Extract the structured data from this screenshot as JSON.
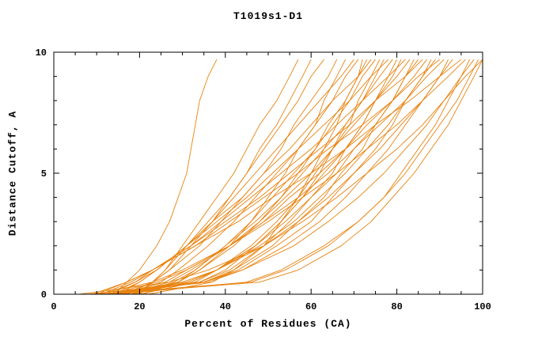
{
  "chart_data": {
    "type": "line",
    "title": "T1019s1-D1",
    "xlabel": "Percent of Residues (CA)",
    "ylabel": "Distance Cutoff, A",
    "xlim": [
      0,
      100
    ],
    "ylim": [
      0,
      10
    ],
    "x_ticks": [
      0,
      20,
      40,
      60,
      80,
      100
    ],
    "x_minor_step": 5,
    "y_ticks": [
      0,
      5,
      10
    ],
    "y_minor_step": 1,
    "grid": "off",
    "legend": "none",
    "line_color": "#e8820e",
    "axis_color": "#000000",
    "y_levels": [
      0,
      0.5,
      1,
      2,
      3,
      4,
      5,
      6,
      7,
      8,
      9,
      9.7
    ],
    "curves": [
      [
        14,
        17,
        20,
        24,
        27,
        29,
        31,
        32,
        33,
        34,
        36,
        38
      ],
      [
        6,
        27,
        36,
        49,
        58,
        66,
        73,
        80,
        86,
        91,
        96,
        100
      ],
      [
        8,
        35,
        44,
        56,
        64,
        71,
        77,
        82,
        87,
        91,
        95,
        98
      ],
      [
        10,
        23,
        30,
        41,
        50,
        58,
        66,
        73,
        80,
        86,
        92,
        96
      ],
      [
        9,
        17,
        23,
        33,
        43,
        51,
        60,
        68,
        75,
        83,
        90,
        95
      ],
      [
        12,
        30,
        38,
        49,
        57,
        64,
        70,
        76,
        81,
        86,
        90,
        93
      ],
      [
        11,
        36,
        44,
        54,
        62,
        68,
        73,
        78,
        82,
        86,
        90,
        92
      ],
      [
        13,
        24,
        31,
        41,
        49,
        57,
        64,
        70,
        76,
        82,
        87,
        91
      ],
      [
        10,
        17,
        23,
        33,
        41,
        49,
        57,
        64,
        72,
        79,
        85,
        90
      ],
      [
        14,
        31,
        38,
        48,
        56,
        62,
        68,
        73,
        78,
        82,
        86,
        89
      ],
      [
        12,
        35,
        43,
        52,
        60,
        65,
        70,
        75,
        79,
        82,
        86,
        88
      ],
      [
        15,
        26,
        31,
        41,
        49,
        55,
        62,
        68,
        73,
        79,
        84,
        87
      ],
      [
        11,
        18,
        23,
        32,
        40,
        48,
        55,
        62,
        69,
        75,
        82,
        86
      ],
      [
        16,
        32,
        38,
        47,
        54,
        60,
        66,
        70,
        75,
        79,
        82,
        85
      ],
      [
        13,
        35,
        42,
        51,
        57,
        63,
        67,
        72,
        75,
        79,
        82,
        84
      ],
      [
        17,
        27,
        32,
        41,
        48,
        54,
        60,
        65,
        70,
        75,
        80,
        83
      ],
      [
        12,
        19,
        23,
        32,
        39,
        46,
        53,
        60,
        66,
        72,
        78,
        82
      ],
      [
        18,
        32,
        38,
        47,
        53,
        58,
        63,
        68,
        72,
        75,
        79,
        81
      ],
      [
        14,
        34,
        41,
        49,
        55,
        60,
        65,
        68,
        72,
        75,
        78,
        80
      ],
      [
        19,
        28,
        33,
        40,
        47,
        53,
        58,
        63,
        68,
        72,
        76,
        79
      ],
      [
        13,
        19,
        24,
        31,
        38,
        45,
        51,
        57,
        63,
        69,
        74,
        78
      ],
      [
        20,
        33,
        38,
        46,
        52,
        57,
        61,
        65,
        68,
        72,
        75,
        77
      ],
      [
        15,
        34,
        40,
        47,
        53,
        58,
        62,
        65,
        69,
        71,
        74,
        76
      ],
      [
        21,
        29,
        33,
        40,
        46,
        51,
        56,
        61,
        65,
        69,
        72,
        75
      ],
      [
        14,
        20,
        24,
        31,
        37,
        44,
        49,
        55,
        60,
        65,
        71,
        74
      ],
      [
        16,
        29,
        34,
        42,
        48,
        53,
        57,
        61,
        64,
        68,
        71,
        73
      ],
      [
        22,
        37,
        42,
        49,
        53,
        57,
        60,
        63,
        66,
        68,
        71,
        72
      ],
      [
        17,
        25,
        29,
        36,
        42,
        47,
        52,
        57,
        61,
        65,
        68,
        71
      ],
      [
        15,
        20,
        24,
        31,
        37,
        42,
        47,
        52,
        57,
        62,
        67,
        70
      ],
      [
        18,
        29,
        34,
        41,
        46,
        50,
        54,
        57,
        61,
        63,
        66,
        68
      ],
      [
        16,
        23,
        27,
        34,
        39,
        44,
        49,
        53,
        56,
        60,
        64,
        66
      ],
      [
        19,
        23,
        26,
        31,
        36,
        41,
        45,
        49,
        53,
        57,
        60,
        63
      ],
      [
        17,
        23,
        27,
        32,
        37,
        41,
        45,
        48,
        52,
        55,
        58,
        60
      ],
      [
        20,
        23,
        26,
        30,
        34,
        38,
        42,
        45,
        48,
        52,
        55,
        57
      ],
      [
        12,
        48,
        57,
        67,
        74,
        79,
        84,
        88,
        92,
        95,
        98,
        100
      ],
      [
        10,
        46,
        54,
        64,
        71,
        77,
        81,
        85,
        89,
        92,
        95,
        97
      ],
      [
        15,
        45,
        53,
        63,
        71,
        77,
        82,
        86,
        90,
        94,
        97,
        99
      ]
    ]
  }
}
